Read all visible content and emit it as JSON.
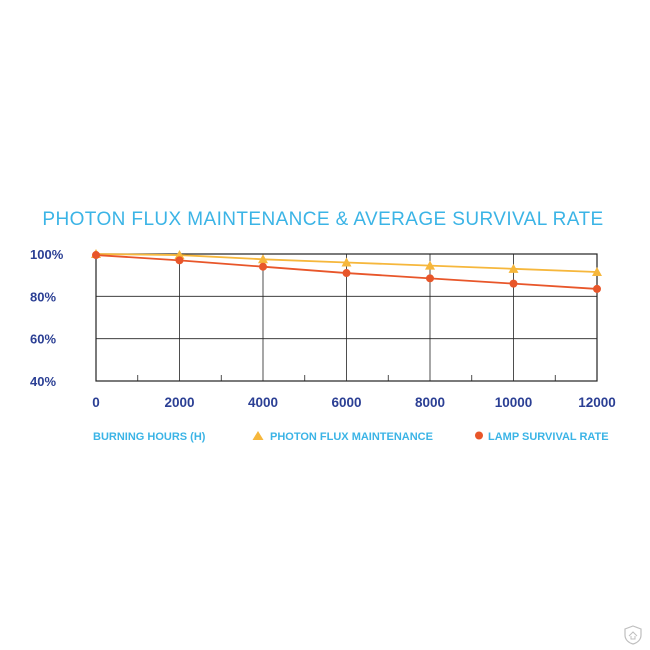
{
  "chart_data": {
    "type": "line",
    "title": "PHOTON FLUX MAINTENANCE & AVERAGE SURVIVAL RATE",
    "xlabel": "BURNING HOURS (H)",
    "ylabel": "",
    "x": [
      0,
      2000,
      4000,
      6000,
      8000,
      10000,
      12000
    ],
    "x_tick_labels": [
      "0",
      "2000",
      "4000",
      "6000",
      "8000",
      "10000",
      "12000"
    ],
    "y_tick_labels": [
      "100%",
      "80%",
      "60%",
      "40%"
    ],
    "xlim": [
      0,
      12000
    ],
    "ylim": [
      40,
      100
    ],
    "grid": true,
    "legend_position": "bottom",
    "series": [
      {
        "name": "PHOTON FLUX MAINTENANCE",
        "marker": "triangle",
        "color": "#f6b73c",
        "values": [
          100,
          99.5,
          97.5,
          96,
          94.5,
          93,
          91.5
        ]
      },
      {
        "name": "LAMP SURVIVAL RATE",
        "marker": "circle",
        "color": "#e8562a",
        "values": [
          99.5,
          97,
          94,
          91,
          88.5,
          86,
          83.5
        ]
      }
    ]
  },
  "colors": {
    "title": "#3bb4e6",
    "ticks": "#2b3f94",
    "grid": "#222222"
  }
}
